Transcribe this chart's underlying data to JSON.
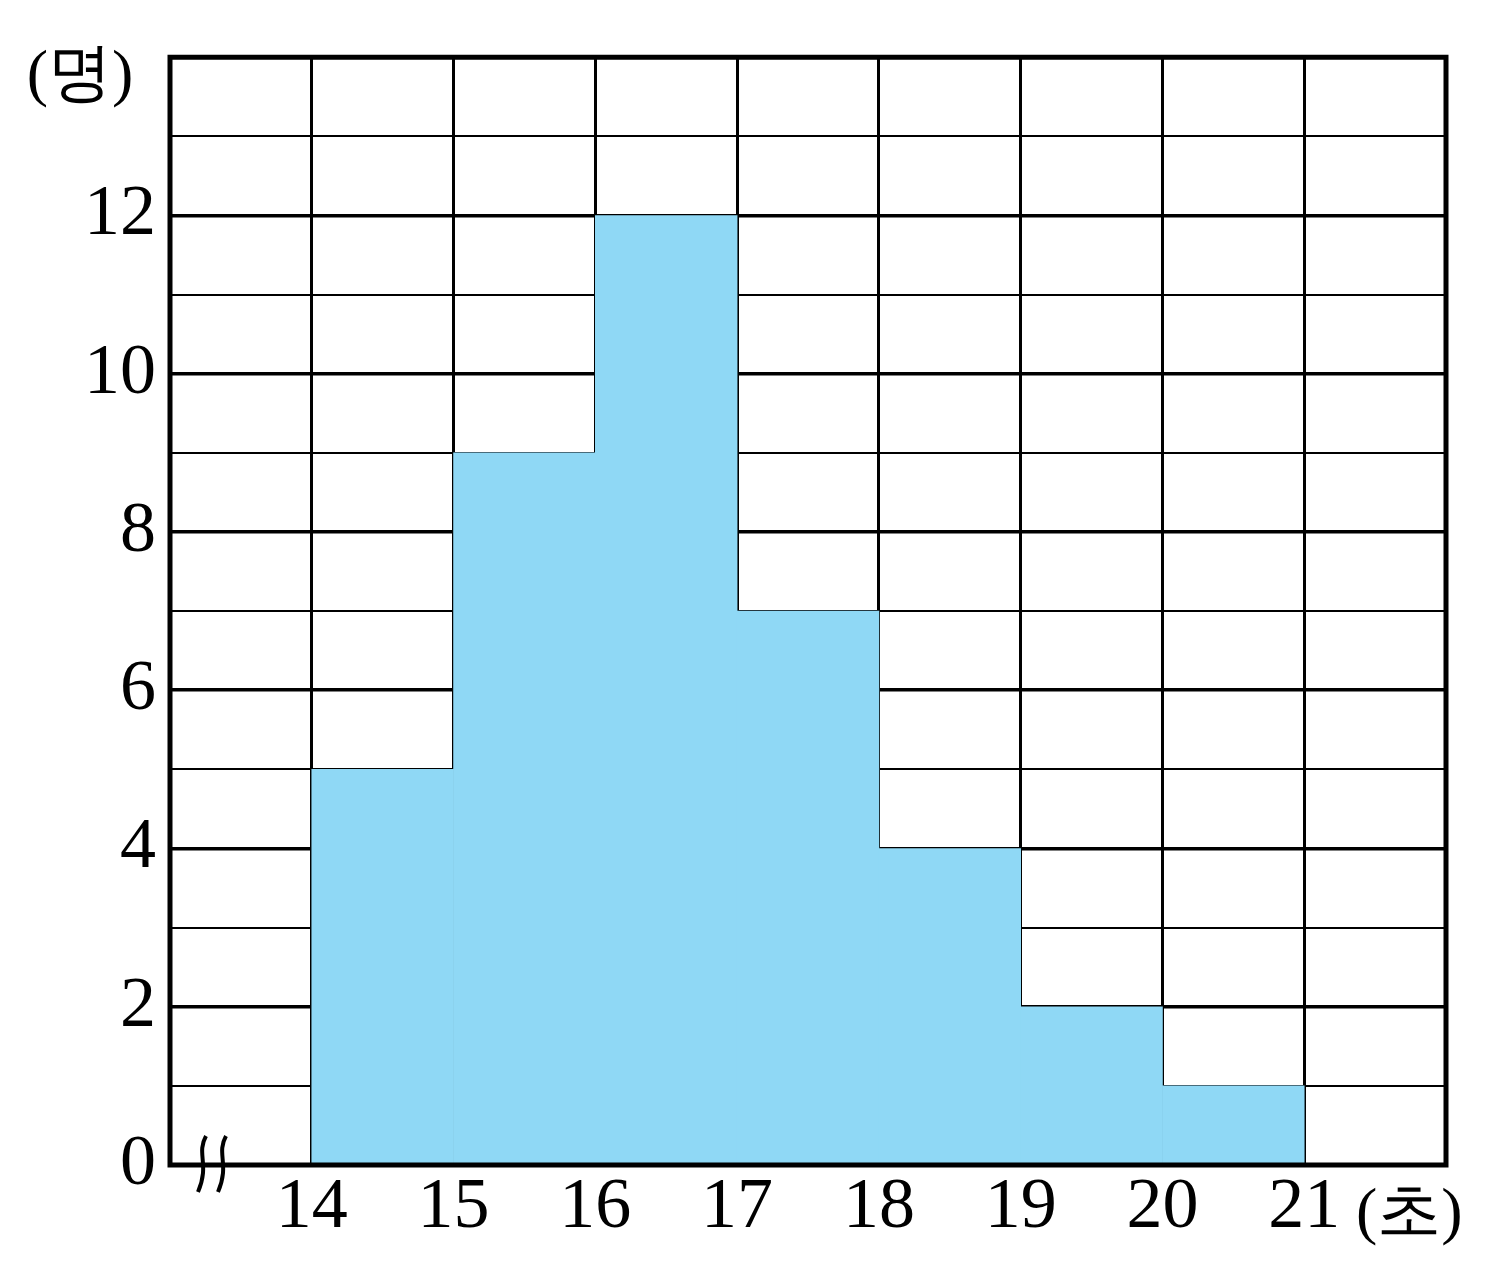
{
  "chart_data": {
    "type": "histogram",
    "xlabel": "(초)",
    "ylabel": "(명)",
    "bins": [
      14,
      15,
      16,
      17,
      18,
      19,
      20,
      21
    ],
    "values": [
      5,
      9,
      12,
      7,
      4,
      2,
      1
    ],
    "color": "#8fd8f5",
    "xlim": [
      13,
      22
    ],
    "xticks": [
      14,
      15,
      16,
      17,
      18,
      19,
      20,
      21
    ],
    "ylim": [
      0,
      14
    ],
    "yticks": [
      0,
      {
        "value": 1,
        "label": null
      },
      2,
      {
        "value": 3,
        "label": null
      },
      4,
      {
        "value": 5,
        "label": null
      },
      6,
      {
        "value": 7,
        "label": null
      },
      8,
      {
        "value": 9,
        "label": null
      },
      10,
      {
        "value": 11,
        "label": null
      },
      12,
      {
        "value": 13,
        "label": null
      }
    ],
    "grid": true,
    "legend": false
  }
}
